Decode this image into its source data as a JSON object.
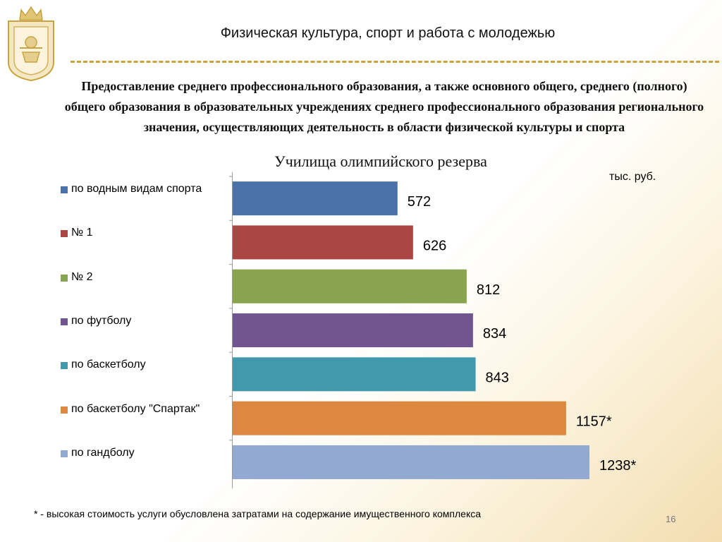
{
  "header": {
    "title": "Физическая культура, спорт и работа с молодежью"
  },
  "subtitle": "Предоставление среднего профессионального образования, а также основного общего, среднего (полного) общего образования в образовательных учреждениях среднего профессионального образования регионального значения, осуществляющих деятельность в области физической культуры и спорта",
  "unit": "тыс. руб.",
  "footnote": "* - высокая стоимость услуги обусловлена затратами на содержание имущественного комплекса",
  "page_number": "16",
  "colors": {
    "accent": "#c9a43e"
  },
  "chart_data": {
    "type": "bar",
    "orientation": "horizontal",
    "title": "Училища олимпийского резерва",
    "unit": "тыс. руб.",
    "categories": [
      "по водным видам спорта",
      "№ 1",
      "№ 2",
      "по футболу",
      "по баскетболу",
      "по баскетболу \"Спартак\"",
      "по гандболу"
    ],
    "values": [
      572,
      626,
      812,
      834,
      843,
      1157,
      1238
    ],
    "data_labels": [
      "572",
      "626",
      "812",
      "834",
      "843",
      "1157*",
      "1238*"
    ],
    "colors": [
      "#4a72a8",
      "#aa4745",
      "#88a44e",
      "#705590",
      "#4199ad",
      "#dd8840",
      "#92a9d2"
    ],
    "legend_position": "left",
    "grid": false
  }
}
